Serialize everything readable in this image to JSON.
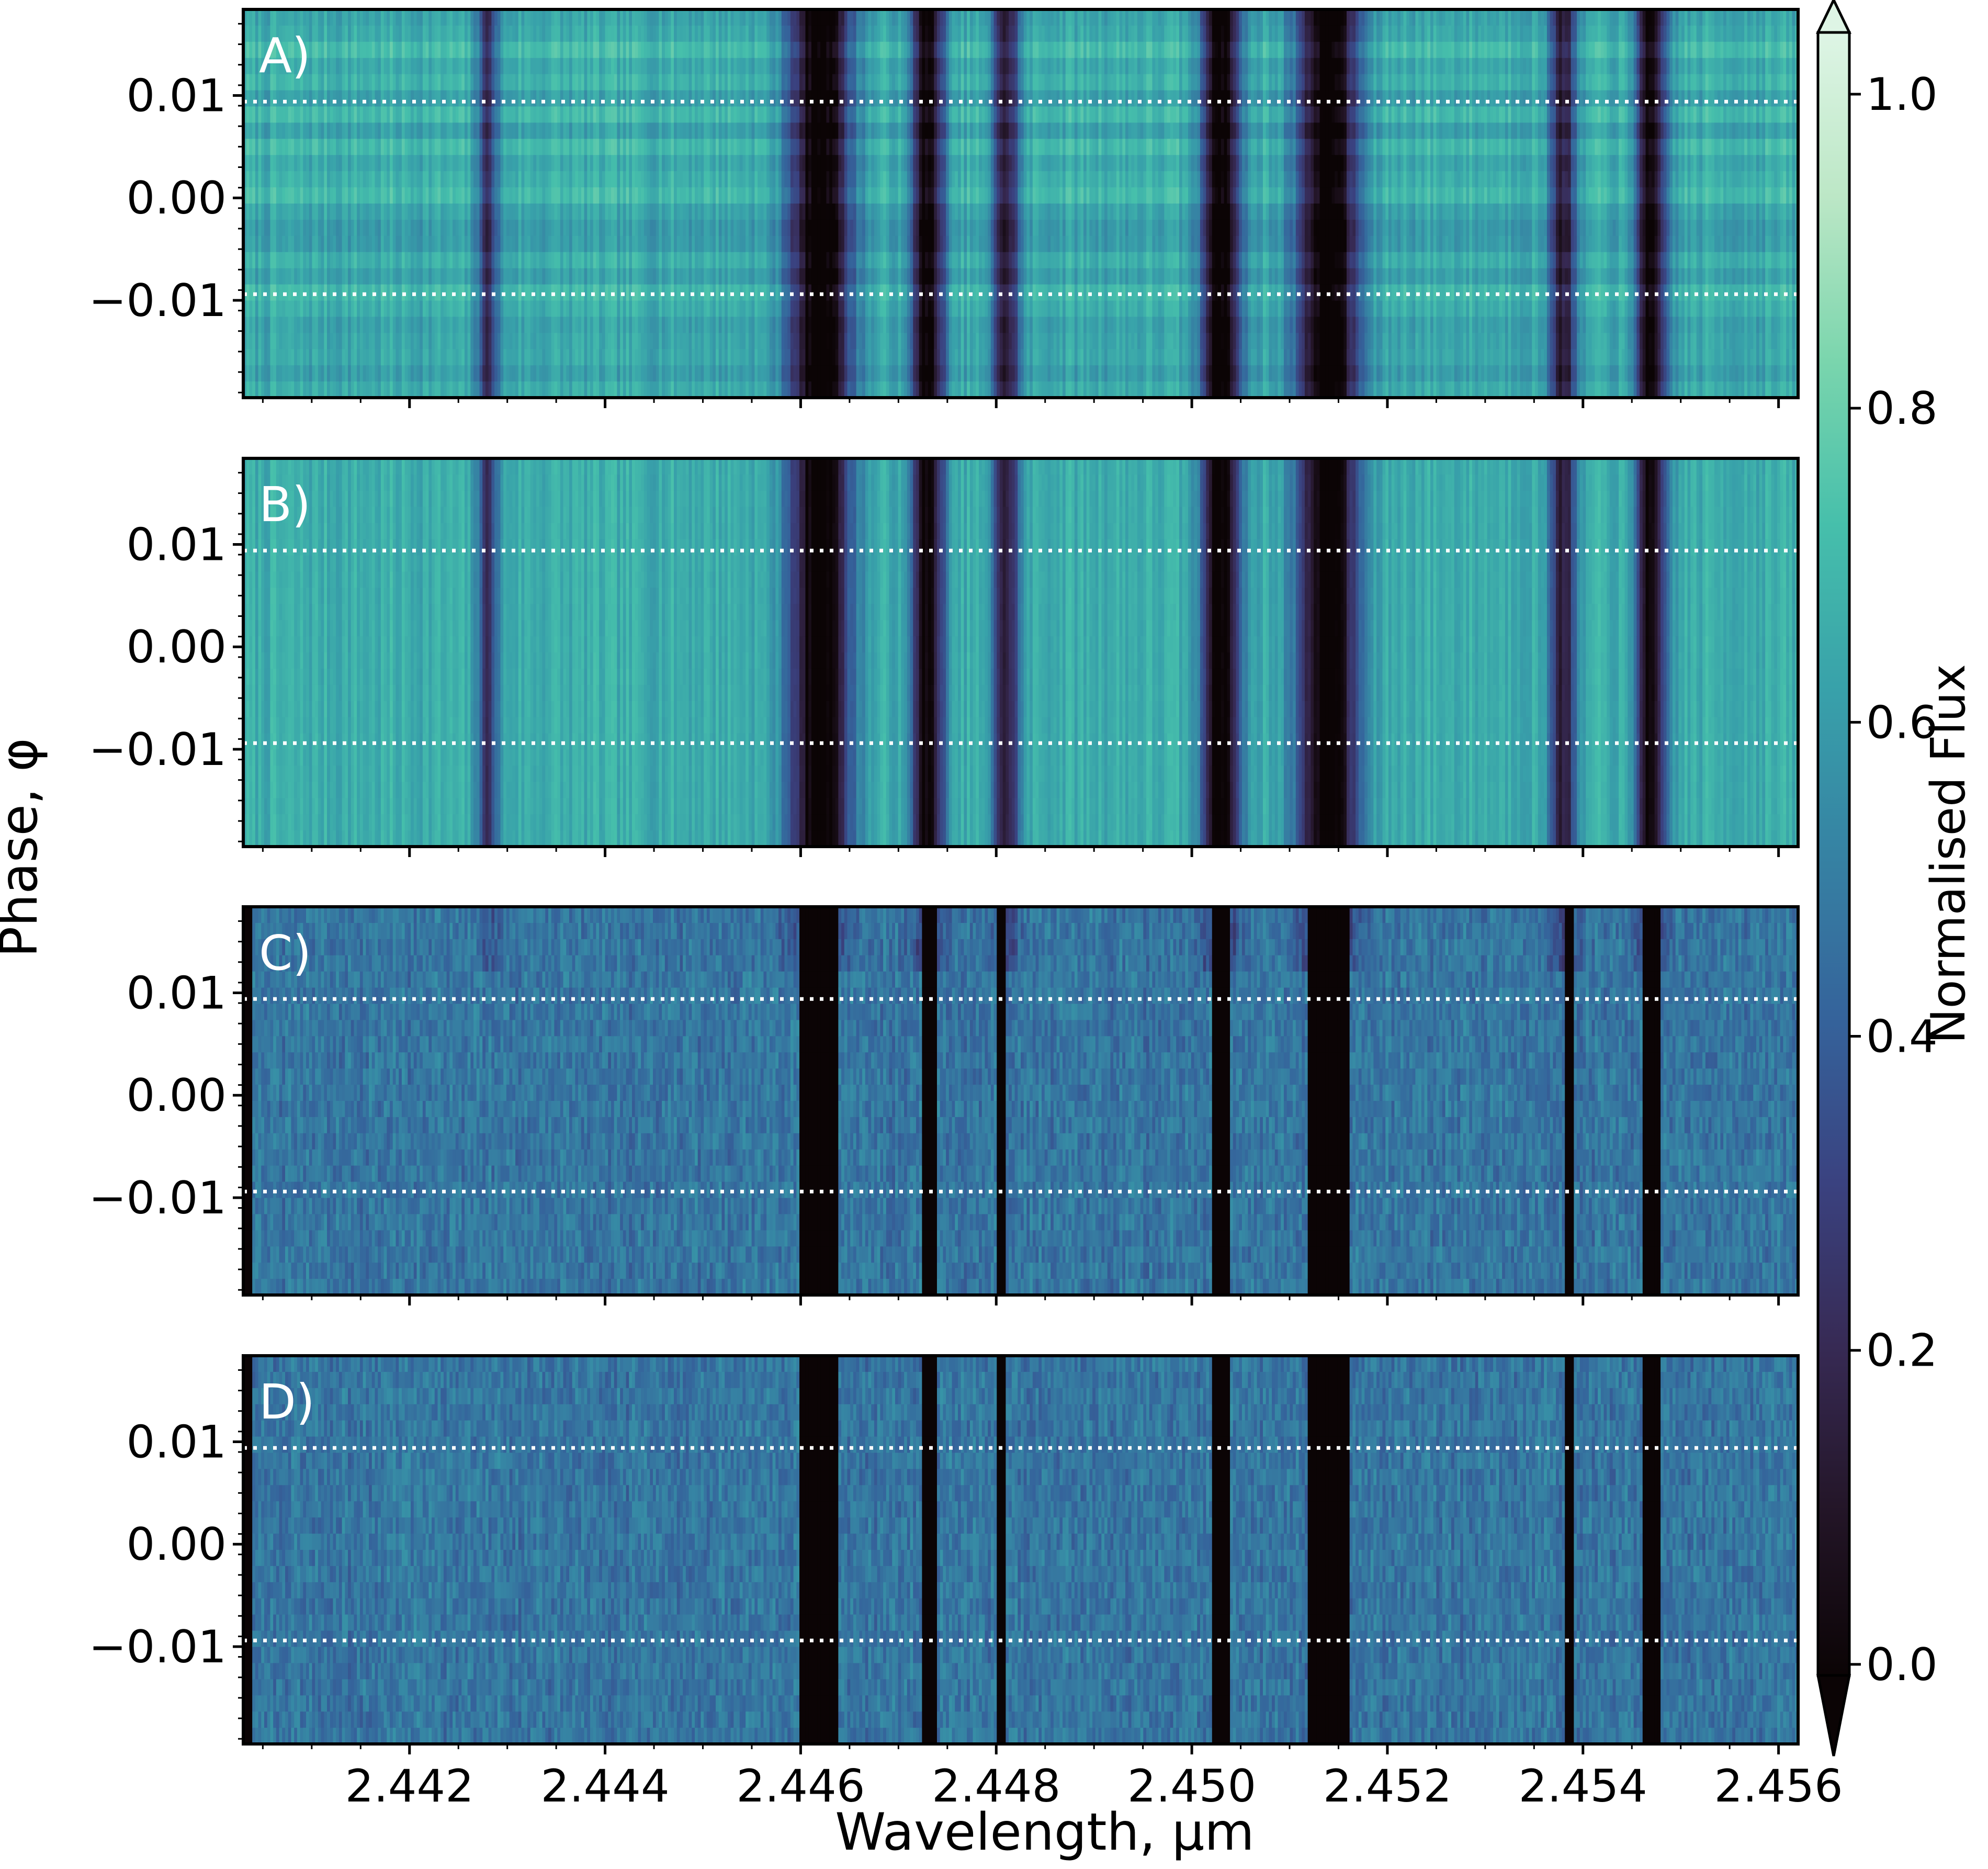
{
  "chart_data": {
    "type": "heatmap",
    "xlabel": "Wavelength, μm",
    "ylabel": "Phase, φ",
    "xlim": [
      2.4403,
      2.4562
    ],
    "ylim": [
      -0.0195,
      0.0184
    ],
    "x_ticks": [
      "2.442",
      "2.444",
      "2.446",
      "2.448",
      "2.450",
      "2.452",
      "2.454",
      "2.456"
    ],
    "x_tick_values": [
      2.442,
      2.444,
      2.446,
      2.448,
      2.45,
      2.452,
      2.454,
      2.456
    ],
    "y_ticks": [
      "0.01",
      "0.00",
      "−0.01"
    ],
    "y_tick_values": [
      0.01,
      0.0,
      -0.01
    ],
    "phase_markers": [
      0.0094,
      -0.0094
    ],
    "colormap": "mako",
    "colorbar": {
      "label": "Normalised Flux",
      "ticks": [
        "1.0",
        "0.8",
        "0.6",
        "0.4",
        "0.2",
        "0.0"
      ],
      "tick_values": [
        1.0,
        0.8,
        0.6,
        0.4,
        0.2,
        0.0
      ],
      "range": [
        0.0,
        1.0
      ],
      "extend": "both"
    },
    "absorption_lines": [
      {
        "center": 2.4428,
        "depth": 0.55,
        "width": 8e-05
      },
      {
        "center": 2.4462,
        "depth": 1.0,
        "width": 0.00022
      },
      {
        "center": 2.4473,
        "depth": 0.9,
        "width": 0.00012
      },
      {
        "center": 2.4481,
        "depth": 0.7,
        "width": 0.0001
      },
      {
        "center": 2.4503,
        "depth": 0.95,
        "width": 0.00014
      },
      {
        "center": 2.4514,
        "depth": 1.0,
        "width": 0.00022
      },
      {
        "center": 2.4538,
        "depth": 0.7,
        "width": 0.0001
      },
      {
        "center": 2.4547,
        "depth": 0.9,
        "width": 0.00011
      }
    ],
    "masked_columns": [
      [
        2.446,
        2.4464
      ],
      [
        2.44725,
        2.4474
      ],
      [
        2.448,
        2.4481
      ],
      [
        2.4502,
        2.4504
      ],
      [
        2.4512,
        2.4516
      ],
      [
        2.4538,
        2.4539
      ],
      [
        2.4546,
        2.4548
      ]
    ],
    "panels": [
      {
        "label": "A)"
      },
      {
        "label": "B)"
      },
      {
        "label": "C)"
      },
      {
        "label": "D)"
      }
    ]
  }
}
